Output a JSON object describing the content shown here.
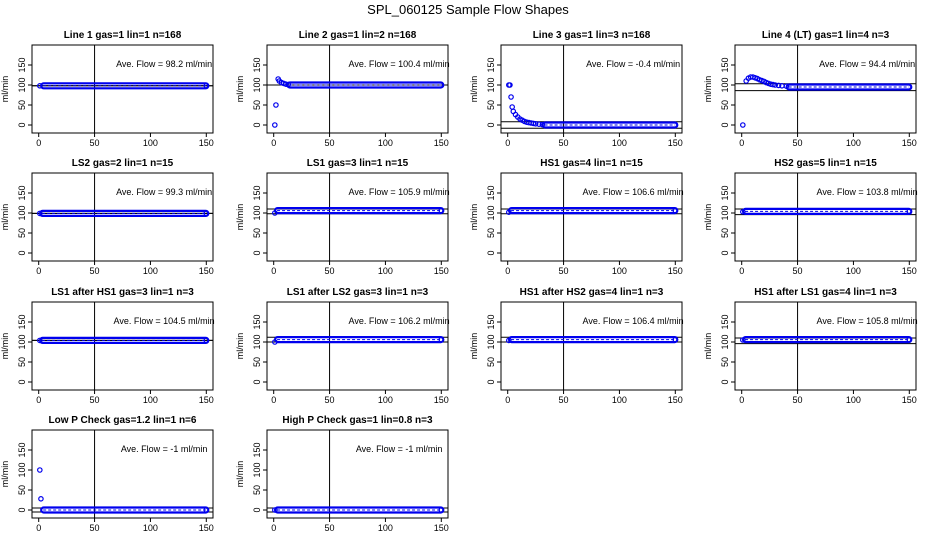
{
  "page": {
    "title": "SPL_060125  Sample Flow Shapes"
  },
  "style": {
    "point_color": "#0000ee",
    "line_color": "#000000"
  },
  "chart_data": [
    {
      "type": "scatter",
      "title": "Line 1 gas=1 lin=1 n=168",
      "ylabel": "ml/min",
      "xlim": [
        0,
        150
      ],
      "ylim": [
        -20,
        200
      ],
      "xticks": [
        0,
        50,
        100,
        150
      ],
      "yticks": [
        0,
        50,
        100,
        150
      ],
      "annotation": "Ave. Flow =  98.2  ml/min",
      "vline": 50,
      "hlines": [
        98,
        98
      ],
      "points": [
        [
          1,
          98
        ],
        [
          150,
          98
        ]
      ],
      "band": {
        "x": [
          4,
          150
        ],
        "y": 98
      }
    },
    {
      "type": "scatter",
      "title": "Line 2 gas=1 lin=2 n=168",
      "ylabel": "ml/min",
      "xlim": [
        0,
        150
      ],
      "ylim": [
        -20,
        200
      ],
      "xticks": [
        0,
        50,
        100,
        150
      ],
      "yticks": [
        0,
        50,
        100,
        150
      ],
      "annotation": "Ave. Flow =  100.4  ml/min",
      "vline": 50,
      "hlines": [
        100,
        100
      ],
      "points": [
        [
          1,
          0
        ],
        [
          2,
          50
        ],
        [
          4,
          115
        ],
        [
          5,
          110
        ],
        [
          7,
          106
        ],
        [
          9,
          104
        ],
        [
          11,
          102
        ],
        [
          13,
          101
        ]
      ],
      "band": {
        "x": [
          14,
          150
        ],
        "y": 100
      }
    },
    {
      "type": "scatter",
      "title": "Line 3 gas=1 lin=3 n=168",
      "ylabel": "ml/min",
      "xlim": [
        0,
        150
      ],
      "ylim": [
        -20,
        200
      ],
      "xticks": [
        0,
        50,
        100,
        150
      ],
      "yticks": [
        0,
        50,
        100,
        150
      ],
      "annotation": "Ave. Flow =  -0.4  ml/min",
      "vline": 50,
      "hlines": [
        -8,
        8
      ],
      "points": [
        [
          1,
          100
        ],
        [
          2,
          100
        ],
        [
          3,
          70
        ],
        [
          4,
          45
        ],
        [
          5,
          34
        ],
        [
          7,
          26
        ],
        [
          9,
          20
        ],
        [
          11,
          15
        ],
        [
          13,
          12
        ],
        [
          15,
          9
        ],
        [
          17,
          7
        ],
        [
          19,
          6
        ],
        [
          21,
          5
        ],
        [
          23,
          4
        ],
        [
          25,
          3
        ],
        [
          28,
          2
        ],
        [
          31,
          1
        ]
      ],
      "band": {
        "x": [
          33,
          150
        ],
        "y": 0
      }
    },
    {
      "type": "scatter",
      "title": "Line 4 (LT) gas=1 lin=4 n=3",
      "ylabel": "ml/min",
      "xlim": [
        0,
        150
      ],
      "ylim": [
        -20,
        200
      ],
      "xticks": [
        0,
        50,
        100,
        150
      ],
      "yticks": [
        0,
        50,
        100,
        150
      ],
      "annotation": "Ave. Flow =  94.4  ml/min",
      "vline": 50,
      "hlines": [
        86,
        103
      ],
      "points": [
        [
          1,
          0
        ],
        [
          4,
          110
        ],
        [
          6,
          117
        ],
        [
          8,
          120
        ],
        [
          10,
          120
        ],
        [
          12,
          118
        ],
        [
          14,
          116
        ],
        [
          16,
          113
        ],
        [
          18,
          111
        ],
        [
          20,
          109
        ],
        [
          22,
          106
        ],
        [
          24,
          104
        ],
        [
          26,
          102
        ],
        [
          28,
          101
        ],
        [
          30,
          100
        ],
        [
          33,
          99
        ],
        [
          36,
          98
        ],
        [
          40,
          97
        ]
      ],
      "band": {
        "x": [
          42,
          150
        ],
        "y": 95
      }
    },
    {
      "type": "scatter",
      "title": "LS2 gas=2 lin=1 n=15",
      "ylabel": "ml/min",
      "xlim": [
        0,
        150
      ],
      "ylim": [
        -20,
        200
      ],
      "xticks": [
        0,
        50,
        100,
        150
      ],
      "yticks": [
        0,
        50,
        100,
        150
      ],
      "annotation": "Ave. Flow =  99.3  ml/min",
      "vline": 50,
      "hlines": [
        99,
        99
      ],
      "points": [
        [
          1,
          99
        ],
        [
          150,
          99
        ]
      ],
      "band": {
        "x": [
          3,
          150
        ],
        "y": 99
      }
    },
    {
      "type": "scatter",
      "title": "LS1 gas=3 lin=1 n=15",
      "ylabel": "ml/min",
      "xlim": [
        0,
        150
      ],
      "ylim": [
        -20,
        200
      ],
      "xticks": [
        0,
        50,
        100,
        150
      ],
      "yticks": [
        0,
        50,
        100,
        150
      ],
      "annotation": "Ave. Flow =  105.9  ml/min",
      "vline": 50,
      "hlines": [
        98,
        110
      ],
      "points": [
        [
          1,
          100
        ],
        [
          150,
          106
        ]
      ],
      "band": {
        "x": [
          3,
          150
        ],
        "y": 106
      }
    },
    {
      "type": "scatter",
      "title": "HS1 gas=4 lin=1 n=15",
      "ylabel": "ml/min",
      "xlim": [
        0,
        150
      ],
      "ylim": [
        -20,
        200
      ],
      "xticks": [
        0,
        50,
        100,
        150
      ],
      "yticks": [
        0,
        50,
        100,
        150
      ],
      "annotation": "Ave. Flow =  106.6  ml/min",
      "vline": 50,
      "hlines": [
        98,
        110
      ],
      "points": [
        [
          1,
          102
        ],
        [
          150,
          106
        ]
      ],
      "band": {
        "x": [
          3,
          150
        ],
        "y": 106
      }
    },
    {
      "type": "scatter",
      "title": "HS2 gas=5 lin=1 n=15",
      "ylabel": "ml/min",
      "xlim": [
        0,
        150
      ],
      "ylim": [
        -20,
        200
      ],
      "xticks": [
        0,
        50,
        100,
        150
      ],
      "yticks": [
        0,
        50,
        100,
        150
      ],
      "annotation": "Ave. Flow =  103.8  ml/min",
      "vline": 50,
      "hlines": [
        96,
        110
      ],
      "points": [
        [
          1,
          103
        ],
        [
          150,
          104
        ]
      ],
      "band": {
        "x": [
          3,
          150
        ],
        "y": 104
      }
    },
    {
      "type": "scatter",
      "title": "LS1 after HS1 gas=3 lin=1 n=3",
      "ylabel": "ml/min",
      "xlim": [
        0,
        150
      ],
      "ylim": [
        -20,
        200
      ],
      "xticks": [
        0,
        50,
        100,
        150
      ],
      "yticks": [
        0,
        50,
        100,
        150
      ],
      "annotation": "Ave. Flow =  104.5  ml/min",
      "vline": 50,
      "hlines": [
        104,
        104
      ],
      "points": [
        [
          1,
          104
        ],
        [
          150,
          104
        ]
      ],
      "band": {
        "x": [
          3,
          150
        ],
        "y": 104
      }
    },
    {
      "type": "scatter",
      "title": "LS1 after LS2 gas=3 lin=1 n=3",
      "ylabel": "ml/min",
      "xlim": [
        0,
        150
      ],
      "ylim": [
        -20,
        200
      ],
      "xticks": [
        0,
        50,
        100,
        150
      ],
      "yticks": [
        0,
        50,
        100,
        150
      ],
      "annotation": "Ave. Flow =  106.2  ml/min",
      "vline": 50,
      "hlines": [
        100,
        112
      ],
      "points": [
        [
          1,
          100
        ],
        [
          150,
          106
        ]
      ],
      "band": {
        "x": [
          3,
          150
        ],
        "y": 106
      }
    },
    {
      "type": "scatter",
      "title": "HS1 after HS2 gas=4 lin=1 n=3",
      "ylabel": "ml/min",
      "xlim": [
        0,
        150
      ],
      "ylim": [
        -20,
        200
      ],
      "xticks": [
        0,
        50,
        100,
        150
      ],
      "yticks": [
        0,
        50,
        100,
        150
      ],
      "annotation": "Ave. Flow =  106.4  ml/min",
      "vline": 50,
      "hlines": [
        100,
        112
      ],
      "points": [
        [
          1,
          104
        ],
        [
          150,
          106
        ]
      ],
      "band": {
        "x": [
          3,
          150
        ],
        "y": 106
      }
    },
    {
      "type": "scatter",
      "title": "HS1 after LS1 gas=4 lin=1 n=3",
      "ylabel": "ml/min",
      "xlim": [
        0,
        150
      ],
      "ylim": [
        -20,
        200
      ],
      "xticks": [
        0,
        50,
        100,
        150
      ],
      "yticks": [
        0,
        50,
        100,
        150
      ],
      "annotation": "Ave. Flow =  105.8  ml/min",
      "vline": 50,
      "hlines": [
        96,
        110
      ],
      "points": [
        [
          1,
          105
        ],
        [
          150,
          106
        ]
      ],
      "band": {
        "x": [
          3,
          150
        ],
        "y": 106
      }
    },
    {
      "type": "scatter",
      "title": "Low P Check gas=1.2 lin=1 n=6",
      "ylabel": "ml/min",
      "xlim": [
        0,
        150
      ],
      "ylim": [
        -20,
        200
      ],
      "xticks": [
        0,
        50,
        100,
        150
      ],
      "yticks": [
        0,
        50,
        100,
        150
      ],
      "annotation": "Ave. Flow =  -1  ml/min",
      "vline": 50,
      "hlines": [
        -5,
        5
      ],
      "points": [
        [
          1,
          100
        ],
        [
          2,
          28
        ],
        [
          150,
          0
        ]
      ],
      "band": {
        "x": [
          4,
          150
        ],
        "y": 0
      }
    },
    {
      "type": "scatter",
      "title": "High P Check gas=1 lin=0.8 n=3",
      "ylabel": "ml/min",
      "xlim": [
        0,
        150
      ],
      "ylim": [
        -20,
        200
      ],
      "xticks": [
        0,
        50,
        100,
        150
      ],
      "yticks": [
        0,
        50,
        100,
        150
      ],
      "annotation": "Ave. Flow =  -1  ml/min",
      "vline": 50,
      "hlines": [
        -5,
        5
      ],
      "points": [
        [
          1,
          0
        ],
        [
          150,
          0
        ]
      ],
      "band": {
        "x": [
          3,
          150
        ],
        "y": 0
      }
    }
  ]
}
